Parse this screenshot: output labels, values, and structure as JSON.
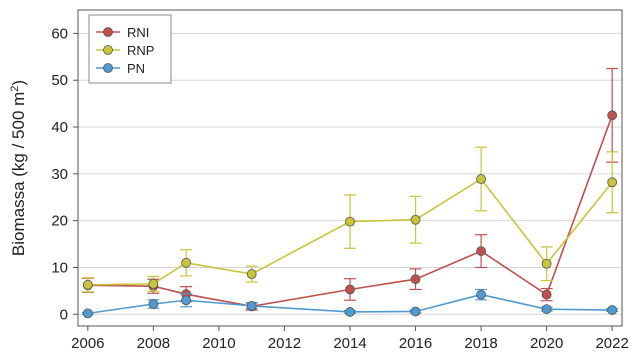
{
  "chart_data": {
    "type": "line",
    "title": "",
    "xlabel": "",
    "ylabel": "Biomassa (kg / 500 m",
    "ylabel_superscript": "2",
    "ylabel_close": ")",
    "x": [
      2006,
      2008,
      2009,
      2011,
      2014,
      2016,
      2018,
      2020,
      2022
    ],
    "x_ticks": [
      "2006",
      "2008",
      "2010",
      "2012",
      "2014",
      "2016",
      "2018",
      "2020",
      "2022"
    ],
    "y_ticks": [
      "0",
      "10",
      "20",
      "30",
      "40",
      "50",
      "60"
    ],
    "xlim": [
      2005.7,
      2022.3
    ],
    "ylim": [
      -2.5,
      65
    ],
    "grid": "horizontal",
    "legend": "top-left",
    "series": [
      {
        "name": "RNI",
        "color": "#c0504d",
        "values": [
          6.2,
          6.0,
          4.3,
          1.7,
          5.3,
          7.5,
          13.5,
          4.2,
          42.5
        ],
        "errors": [
          1.5,
          1.5,
          1.6,
          0.8,
          2.3,
          2.2,
          3.5,
          1.3,
          10.0
        ]
      },
      {
        "name": "RNP",
        "color": "#c9c43a",
        "values": [
          6.3,
          6.5,
          11.0,
          8.6,
          19.8,
          20.2,
          28.9,
          10.8,
          28.2
        ],
        "errors": [
          1.5,
          1.6,
          2.8,
          1.7,
          5.7,
          5.0,
          6.8,
          3.6,
          6.5
        ]
      },
      {
        "name": "PN",
        "color": "#4f9ad0",
        "values": [
          0.2,
          2.2,
          3.0,
          1.8,
          0.5,
          0.6,
          4.2,
          1.1,
          0.9
        ],
        "errors": [
          0.2,
          0.9,
          1.4,
          0.6,
          0.3,
          0.3,
          1.1,
          0.4,
          0.3
        ]
      }
    ]
  }
}
